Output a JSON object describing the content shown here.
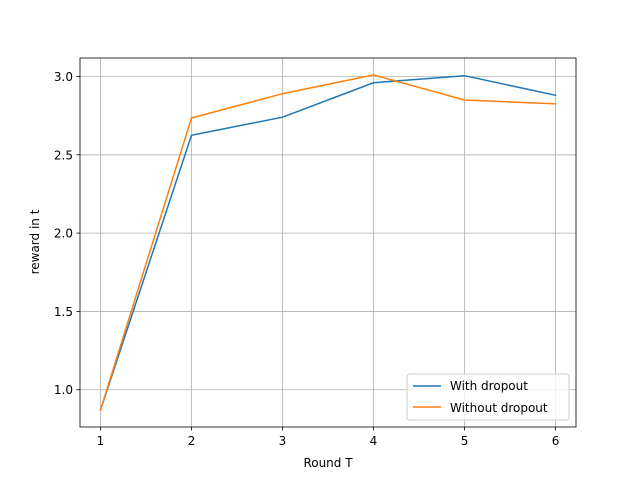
{
  "chart_data": {
    "type": "line",
    "title": "",
    "xlabel": "Round T",
    "ylabel": "reward in t",
    "x": [
      1,
      2,
      3,
      4,
      5,
      6
    ],
    "xlim": [
      0.775,
      6.225
    ],
    "ylim": [
      0.762,
      3.118
    ],
    "xticks": [
      "1",
      "2",
      "3",
      "4",
      "5",
      "6"
    ],
    "yticks": [
      "1.0",
      "1.5",
      "2.0",
      "2.5",
      "3.0"
    ],
    "ytick_values": [
      1.0,
      1.5,
      2.0,
      2.5,
      3.0
    ],
    "grid": true,
    "legend_position": "lower-right",
    "series": [
      {
        "name": "With dropout",
        "color": "#1f77b4",
        "values": [
          0.87,
          2.625,
          2.74,
          2.96,
          3.005,
          2.88
        ]
      },
      {
        "name": "Without dropout",
        "color": "#ff7f0e",
        "values": [
          0.87,
          2.735,
          2.89,
          3.01,
          2.85,
          2.825
        ]
      }
    ]
  }
}
